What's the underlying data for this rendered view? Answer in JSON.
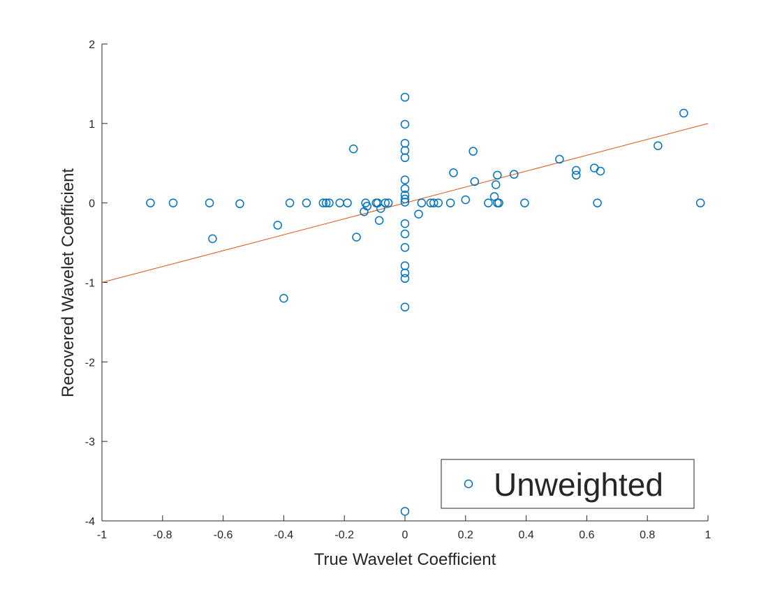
{
  "chart_data": {
    "type": "scatter",
    "title": "",
    "xlabel": "True Wavelet Coefficient",
    "ylabel": "Recovered Wavelet Coefficient",
    "xlim": [
      -1,
      1
    ],
    "ylim": [
      -4,
      2
    ],
    "x_ticks": [
      -1,
      -0.8,
      -0.6,
      -0.4,
      -0.2,
      0,
      0.2,
      0.4,
      0.6,
      0.8,
      1
    ],
    "x_tick_labels": [
      "-1",
      "-0.8",
      "-0.6",
      "-0.4",
      "-0.2",
      "0",
      "0.2",
      "0.4",
      "0.6",
      "0.8",
      "1"
    ],
    "y_ticks": [
      -4,
      -3,
      -2,
      -1,
      0,
      1,
      2
    ],
    "y_tick_labels": [
      "-4",
      "-3",
      "-2",
      "-1",
      "0",
      "1",
      "2"
    ],
    "grid": false,
    "legend": {
      "placement": "bottom-right",
      "entries": [
        "Unweighted"
      ]
    },
    "colors": {
      "series": "#0072BD",
      "reference_line": "#D95319",
      "axes": "#262626"
    },
    "series": [
      {
        "name": "Unweighted",
        "marker": "circle-open",
        "points": [
          [
            -0.84,
            0
          ],
          [
            -0.765,
            0
          ],
          [
            -0.645,
            0
          ],
          [
            -0.635,
            -0.45
          ],
          [
            -0.545,
            -0.01
          ],
          [
            -0.42,
            -0.28
          ],
          [
            -0.4,
            -1.2
          ],
          [
            -0.38,
            0
          ],
          [
            -0.325,
            0
          ],
          [
            -0.27,
            0
          ],
          [
            -0.26,
            0
          ],
          [
            -0.25,
            0
          ],
          [
            -0.215,
            0
          ],
          [
            -0.19,
            0
          ],
          [
            -0.17,
            0.68
          ],
          [
            -0.16,
            -0.43
          ],
          [
            -0.135,
            -0.11
          ],
          [
            -0.13,
            0
          ],
          [
            -0.125,
            -0.04
          ],
          [
            -0.095,
            0
          ],
          [
            -0.09,
            0
          ],
          [
            -0.085,
            -0.22
          ],
          [
            -0.08,
            -0.07
          ],
          [
            -0.065,
            0
          ],
          [
            -0.055,
            0
          ],
          [
            0,
            1.33
          ],
          [
            0,
            0.99
          ],
          [
            0,
            0.75
          ],
          [
            0,
            0.66
          ],
          [
            0,
            0.57
          ],
          [
            0,
            0.29
          ],
          [
            0,
            0.18
          ],
          [
            0,
            0.1
          ],
          [
            0,
            0.05
          ],
          [
            0,
            0.01
          ],
          [
            0,
            -0.26
          ],
          [
            0,
            -0.39
          ],
          [
            0,
            -0.56
          ],
          [
            0,
            -0.79
          ],
          [
            0,
            -0.88
          ],
          [
            0,
            -0.95
          ],
          [
            0,
            -1.31
          ],
          [
            0,
            -3.88
          ],
          [
            0.045,
            -0.14
          ],
          [
            0.055,
            0
          ],
          [
            0.085,
            0
          ],
          [
            0.095,
            0
          ],
          [
            0.11,
            0
          ],
          [
            0.15,
            0
          ],
          [
            0.16,
            0.38
          ],
          [
            0.2,
            0.04
          ],
          [
            0.225,
            0.65
          ],
          [
            0.23,
            0.27
          ],
          [
            0.275,
            0
          ],
          [
            0.295,
            0.08
          ],
          [
            0.3,
            0.23
          ],
          [
            0.305,
            0
          ],
          [
            0.305,
            0.35
          ],
          [
            0.31,
            0
          ],
          [
            0.36,
            0.36
          ],
          [
            0.395,
            0
          ],
          [
            0.51,
            0.55
          ],
          [
            0.565,
            0.35
          ],
          [
            0.565,
            0.41
          ],
          [
            0.625,
            0.44
          ],
          [
            0.635,
            0
          ],
          [
            0.645,
            0.4
          ],
          [
            0.835,
            0.72
          ],
          [
            0.92,
            1.13
          ],
          [
            0.975,
            0
          ]
        ]
      }
    ],
    "reference_line": {
      "from": [
        -1,
        -1
      ],
      "to": [
        1,
        1
      ]
    }
  }
}
